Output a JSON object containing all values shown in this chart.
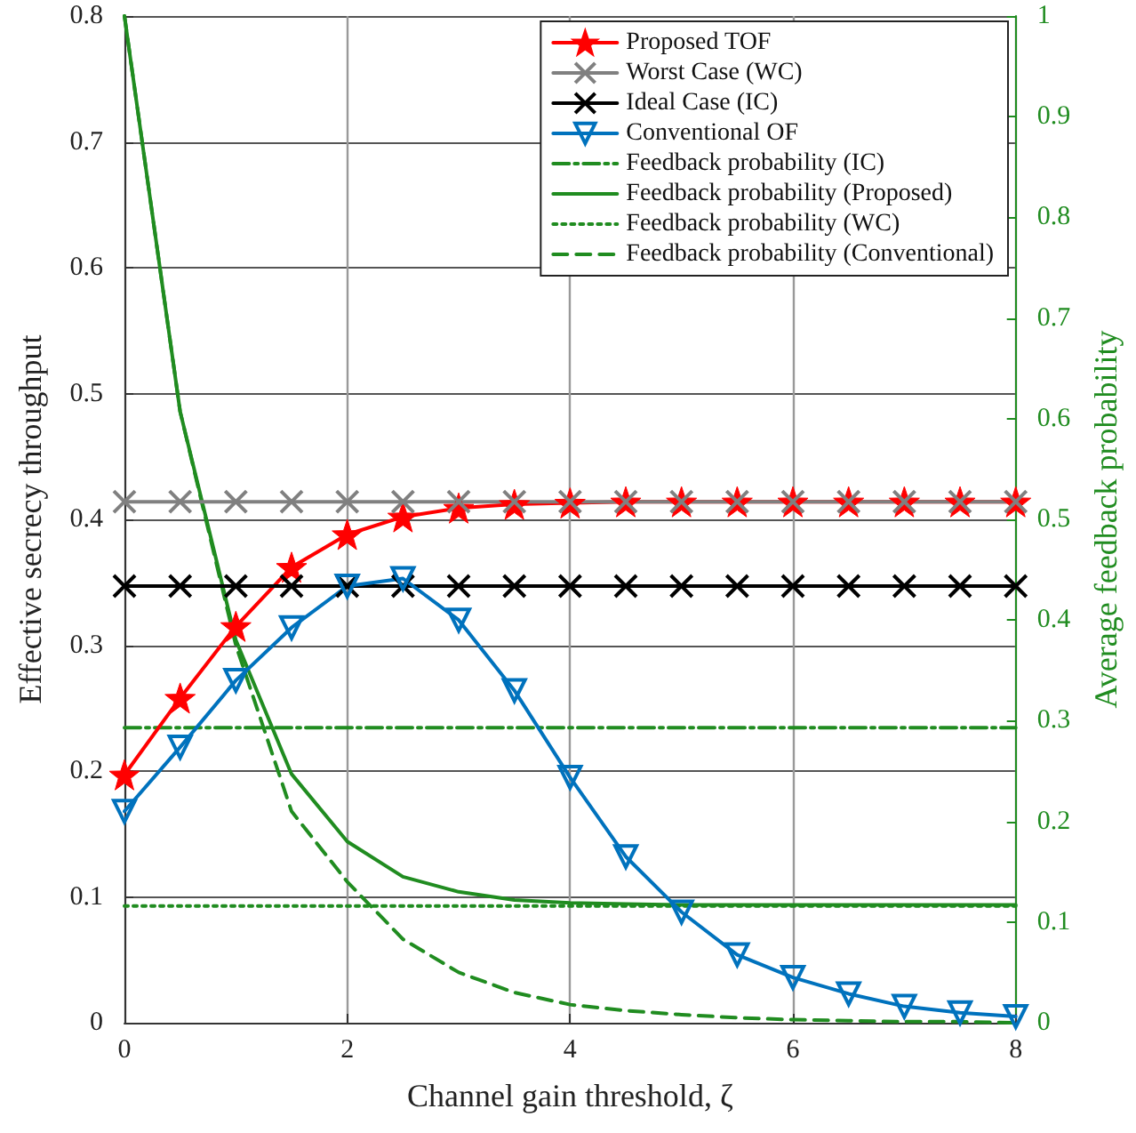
{
  "chart_data": {
    "type": "line",
    "xlabel": "Channel gain threshold, ζ",
    "ylabel": "Effective secrecy throughput",
    "y2label": "Average feedback probability",
    "x": [
      0,
      0.5,
      1,
      1.5,
      2,
      2.5,
      3,
      3.5,
      4,
      4.5,
      5,
      5.5,
      6,
      6.5,
      7,
      7.5,
      8
    ],
    "xlim": [
      0,
      8
    ],
    "xticks": [
      0,
      2,
      4,
      6,
      8
    ],
    "ylim": [
      0,
      0.8
    ],
    "yticks": [
      0,
      0.1,
      0.2,
      0.3,
      0.4,
      0.5,
      0.6,
      0.7,
      0.8
    ],
    "y2lim": [
      0,
      1
    ],
    "y2ticks": [
      0,
      0.1,
      0.2,
      0.3,
      0.4,
      0.5,
      0.6,
      0.7,
      0.8,
      0.9,
      1
    ],
    "grid": true,
    "legend": "top right",
    "series": [
      {
        "name": "Proposed TOF",
        "color": "#ff0000",
        "marker": "star",
        "line_style": "solid",
        "values": [
          0.197,
          0.258,
          0.315,
          0.362,
          0.388,
          0.402,
          0.409,
          0.412,
          0.413,
          0.414,
          0.414,
          0.414,
          0.414,
          0.414,
          0.414,
          0.414,
          0.414
        ]
      },
      {
        "name": "Worst Case (WC)",
        "color": "#808080",
        "marker": "cross",
        "line_style": "solid",
        "values": [
          0.414,
          0.414,
          0.414,
          0.414,
          0.414,
          0.414,
          0.414,
          0.414,
          0.414,
          0.414,
          0.414,
          0.414,
          0.414,
          0.414,
          0.414,
          0.414,
          0.414
        ]
      },
      {
        "name": "Ideal Case (IC)",
        "color": "#000000",
        "marker": "cross",
        "line_style": "solid",
        "values": [
          0.347,
          0.347,
          0.347,
          0.347,
          0.347,
          0.347,
          0.347,
          0.347,
          0.347,
          0.347,
          0.347,
          0.347,
          0.347,
          0.347,
          0.347,
          0.347,
          0.347
        ]
      },
      {
        "name": "Conventional OF",
        "color": "#0072bd",
        "marker": "triangle_down",
        "line_style": "solid",
        "values": [
          0.168,
          0.219,
          0.272,
          0.314,
          0.347,
          0.353,
          0.32,
          0.264,
          0.195,
          0.132,
          0.088,
          0.054,
          0.036,
          0.023,
          0.013,
          0.008,
          0.005
        ]
      },
      {
        "name": "Feedback probability (IC)",
        "color": "#208c20",
        "marker": "none",
        "line_style": "dashdot",
        "axis": "y2",
        "values": [
          0.293,
          0.293,
          0.293,
          0.293,
          0.293,
          0.293,
          0.293,
          0.293,
          0.293,
          0.293,
          0.293,
          0.293,
          0.293,
          0.293,
          0.293,
          0.293,
          0.293
        ]
      },
      {
        "name": "Feedback probability (Proposed)",
        "color": "#208c20",
        "marker": "none",
        "line_style": "solid",
        "axis": "y2",
        "values": [
          1,
          0.607,
          0.38,
          0.247,
          0.18,
          0.145,
          0.13,
          0.122,
          0.119,
          0.118,
          0.117,
          0.117,
          0.117,
          0.117,
          0.117,
          0.117,
          0.117
        ]
      },
      {
        "name": "Feedback probability (WC)",
        "color": "#208c20",
        "marker": "none",
        "line_style": "dotted",
        "axis": "y2",
        "values": [
          0.116,
          0.116,
          0.116,
          0.116,
          0.116,
          0.116,
          0.116,
          0.116,
          0.116,
          0.116,
          0.116,
          0.116,
          0.116,
          0.116,
          0.116,
          0.116,
          0.116
        ]
      },
      {
        "name": "Feedback probability (Conventional)",
        "color": "#208c20",
        "marker": "none",
        "line_style": "dashed",
        "axis": "y2",
        "values": [
          1,
          0.607,
          0.375,
          0.21,
          0.14,
          0.083,
          0.05,
          0.03,
          0.018,
          0.012,
          0.008,
          0.005,
          0.003,
          0.002,
          0.001,
          0.001,
          0
        ]
      }
    ]
  }
}
